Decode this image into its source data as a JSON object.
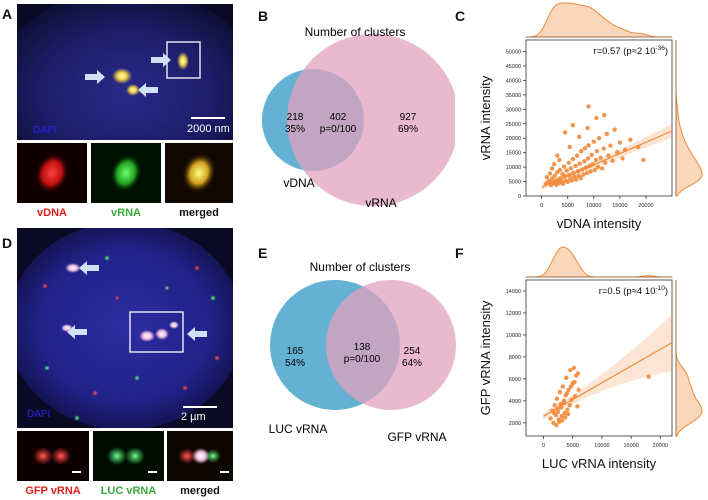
{
  "panels": {
    "A": {
      "letter": "A",
      "dapi": "DAPI",
      "scale": "2000 nm",
      "captions": [
        "vDNA",
        "vRNA",
        "merged"
      ],
      "caption_colors": [
        "#e0201a",
        "#3aa83a",
        "#111111"
      ]
    },
    "B": {
      "letter": "B",
      "title": "Number of clusters",
      "left_count": "218",
      "left_pct": "35%",
      "overlap_count": "402",
      "overlap_p": "p=0/100",
      "right_count": "927",
      "right_pct": "69%",
      "left_label": "vDNA",
      "right_label": "vRNA",
      "left_color": "#4aa3cc",
      "right_color": "#e1a2bd"
    },
    "C": {
      "letter": "C",
      "stat": "r=0.57 (p≈2 10",
      "stat_exp": "-36",
      "stat_close": ")",
      "xlabel": "vDNA intensity",
      "ylabel": "vRNA intensity",
      "color": "#f08a3a"
    },
    "D": {
      "letter": "D",
      "dapi": "DAPI",
      "scale": "2 µm",
      "captions": [
        "GFP vRNA",
        "LUC vRNA",
        "merged"
      ],
      "caption_colors": [
        "#e0201a",
        "#3aa83a",
        "#111111"
      ]
    },
    "E": {
      "letter": "E",
      "title": "Number of clusters",
      "left_count": "165",
      "left_pct": "54%",
      "overlap_count": "138",
      "overlap_p": "p=0/100",
      "right_count": "254",
      "right_pct": "64%",
      "left_label": "LUC vRNA",
      "right_label": "GFP vRNA",
      "left_color": "#4aa3cc",
      "right_color": "#e1a2bd"
    },
    "F": {
      "letter": "F",
      "stat": "r=0.5 (p≈4 10",
      "stat_exp": "-10",
      "stat_close": ")",
      "xlabel": "LUC vRNA intensity",
      "ylabel": "GFP vRNA intensity",
      "color": "#f08a3a"
    }
  },
  "chart_data": [
    {
      "type": "scatter",
      "panel": "C",
      "xlabel": "vDNA intensity",
      "ylabel": "vRNA intensity",
      "xticks": [
        0,
        5000,
        10000,
        15000,
        20000
      ],
      "yticks": [
        0,
        5000,
        10000,
        15000,
        20000,
        25000,
        30000,
        35000,
        40000,
        45000,
        50000
      ],
      "xlim": [
        -3000,
        25000
      ],
      "ylim": [
        0,
        54000
      ],
      "r": 0.57,
      "fit": {
        "x": [
          0,
          25000
        ],
        "y": [
          3000,
          22500
        ]
      },
      "points": [
        [
          1200,
          4800
        ],
        [
          1500,
          5200
        ],
        [
          1800,
          3800
        ],
        [
          2000,
          6000
        ],
        [
          2200,
          4500
        ],
        [
          2500,
          7000
        ],
        [
          2600,
          5100
        ],
        [
          2800,
          3900
        ],
        [
          3000,
          8200
        ],
        [
          3100,
          5600
        ],
        [
          3300,
          4400
        ],
        [
          3500,
          9000
        ],
        [
          3600,
          6200
        ],
        [
          3800,
          5000
        ],
        [
          4000,
          7600
        ],
        [
          4100,
          4200
        ],
        [
          4300,
          10200
        ],
        [
          4500,
          6800
        ],
        [
          4600,
          5300
        ],
        [
          4800,
          8800
        ],
        [
          5000,
          4900
        ],
        [
          5200,
          11500
        ],
        [
          5300,
          7300
        ],
        [
          5500,
          6100
        ],
        [
          5600,
          9600
        ],
        [
          5800,
          5400
        ],
        [
          6000,
          12800
        ],
        [
          6100,
          8000
        ],
        [
          6300,
          6600
        ],
        [
          6500,
          10400
        ],
        [
          6600,
          5700
        ],
        [
          6800,
          14000
        ],
        [
          7000,
          8600
        ],
        [
          7100,
          7000
        ],
        [
          7300,
          11200
        ],
        [
          7500,
          6200
        ],
        [
          7600,
          15500
        ],
        [
          7800,
          9200
        ],
        [
          8000,
          7400
        ],
        [
          8200,
          12000
        ],
        [
          8300,
          16500
        ],
        [
          8500,
          9800
        ],
        [
          8700,
          8000
        ],
        [
          8900,
          13000
        ],
        [
          9000,
          17500
        ],
        [
          9200,
          10400
        ],
        [
          9400,
          8500
        ],
        [
          9600,
          14200
        ],
        [
          9800,
          11000
        ],
        [
          10000,
          18800
        ],
        [
          10200,
          9000
        ],
        [
          10400,
          12500
        ],
        [
          10600,
          15500
        ],
        [
          10800,
          10000
        ],
        [
          11000,
          20000
        ],
        [
          11300,
          13200
        ],
        [
          11600,
          9600
        ],
        [
          11900,
          16400
        ],
        [
          12200,
          11500
        ],
        [
          12500,
          21500
        ],
        [
          12800,
          14000
        ],
        [
          13200,
          17400
        ],
        [
          13600,
          12200
        ],
        [
          14000,
          23000
        ],
        [
          14500,
          15200
        ],
        [
          15000,
          18500
        ],
        [
          15500,
          13000
        ],
        [
          16000,
          16000
        ],
        [
          17000,
          19500
        ],
        [
          18500,
          17000
        ],
        [
          19500,
          12500
        ],
        [
          9000,
          31000
        ],
        [
          10500,
          27000
        ],
        [
          6000,
          24500
        ],
        [
          4500,
          22000
        ],
        [
          12000,
          28000
        ],
        [
          3000,
          14000
        ],
        [
          2000,
          9500
        ],
        [
          1000,
          6500
        ],
        [
          800,
          4200
        ],
        [
          1600,
          7800
        ],
        [
          2400,
          11000
        ],
        [
          3400,
          12500
        ],
        [
          5400,
          17000
        ],
        [
          7200,
          20500
        ],
        [
          8800,
          23500
        ]
      ]
    },
    {
      "type": "scatter",
      "panel": "F",
      "xlabel": "LUC vRNA intensity",
      "ylabel": "GFP vRNA intensity",
      "xticks": [
        0,
        5000,
        10000,
        15000,
        20000
      ],
      "yticks": [
        2000,
        4000,
        6000,
        8000,
        10000,
        12000,
        14000
      ],
      "xlim": [
        -3000,
        22000
      ],
      "ylim": [
        800,
        15000
      ],
      "r": 0.5,
      "fit": {
        "x": [
          0,
          22000
        ],
        "y": [
          2600,
          9300
        ]
      },
      "points": [
        [
          1200,
          2400
        ],
        [
          1500,
          3100
        ],
        [
          1700,
          2000
        ],
        [
          1900,
          3600
        ],
        [
          2100,
          2700
        ],
        [
          2300,
          4200
        ],
        [
          2500,
          3000
        ],
        [
          2600,
          2300
        ],
        [
          2800,
          4800
        ],
        [
          3000,
          3400
        ],
        [
          3100,
          2600
        ],
        [
          3300,
          5300
        ],
        [
          3400,
          3800
        ],
        [
          3600,
          2900
        ],
        [
          3800,
          4500
        ],
        [
          3900,
          6100
        ],
        [
          4100,
          3200
        ],
        [
          4300,
          5000
        ],
        [
          4500,
          3600
        ],
        [
          4600,
          6800
        ],
        [
          4800,
          4100
        ],
        [
          5000,
          5600
        ],
        [
          5200,
          7000
        ],
        [
          5400,
          4400
        ],
        [
          5600,
          6300
        ],
        [
          5800,
          3500
        ],
        [
          6000,
          5000
        ],
        [
          2200,
          1800
        ],
        [
          2700,
          2100
        ],
        [
          3200,
          2200
        ],
        [
          3700,
          2500
        ],
        [
          4200,
          2800
        ],
        [
          1800,
          2900
        ],
        [
          2400,
          3300
        ],
        [
          2900,
          3700
        ],
        [
          3500,
          4000
        ],
        [
          4000,
          4700
        ],
        [
          4700,
          5300
        ],
        [
          5300,
          5700
        ],
        [
          5900,
          6500
        ],
        [
          18000,
          6200
        ]
      ]
    }
  ]
}
